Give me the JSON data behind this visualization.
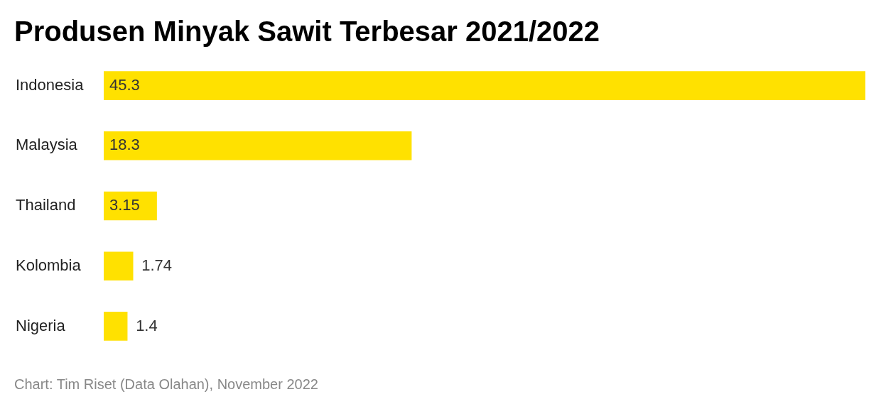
{
  "chart_data": {
    "type": "bar",
    "orientation": "horizontal",
    "title": "Produsen Minyak Sawit Terbesar 2021/2022",
    "categories": [
      "Indonesia",
      "Malaysia",
      "Thailand",
      "Kolombia",
      "Nigeria"
    ],
    "values": [
      45.3,
      18.3,
      3.15,
      1.74,
      1.4
    ],
    "color": "#ffe100",
    "data_labels": true,
    "legend": false,
    "annotations": [
      "Chart: Tim Riset (Data Olahan), November 2022"
    ]
  }
}
